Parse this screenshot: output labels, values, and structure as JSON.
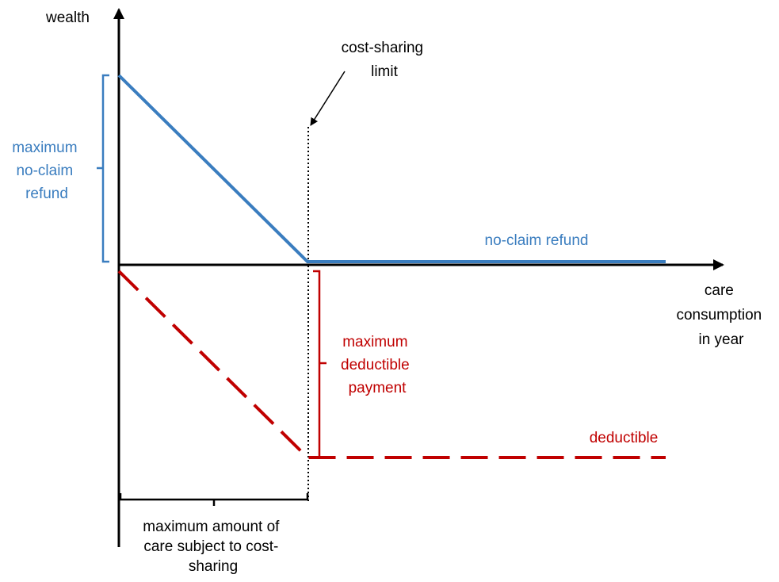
{
  "axes": {
    "y_label": "wealth",
    "x_label": [
      "care",
      "consumption",
      "in year"
    ]
  },
  "annotations": {
    "limit": [
      "cost-sharing",
      "limit"
    ],
    "max_refund": [
      "maximum",
      "no-claim",
      "refund"
    ],
    "refund_line": "no-claim refund",
    "max_deductible": [
      "maximum",
      "deductible",
      "payment"
    ],
    "deductible_line": "deductible",
    "max_care": [
      "maximum amount of",
      "care subject to cost-",
      "sharing"
    ]
  }
}
